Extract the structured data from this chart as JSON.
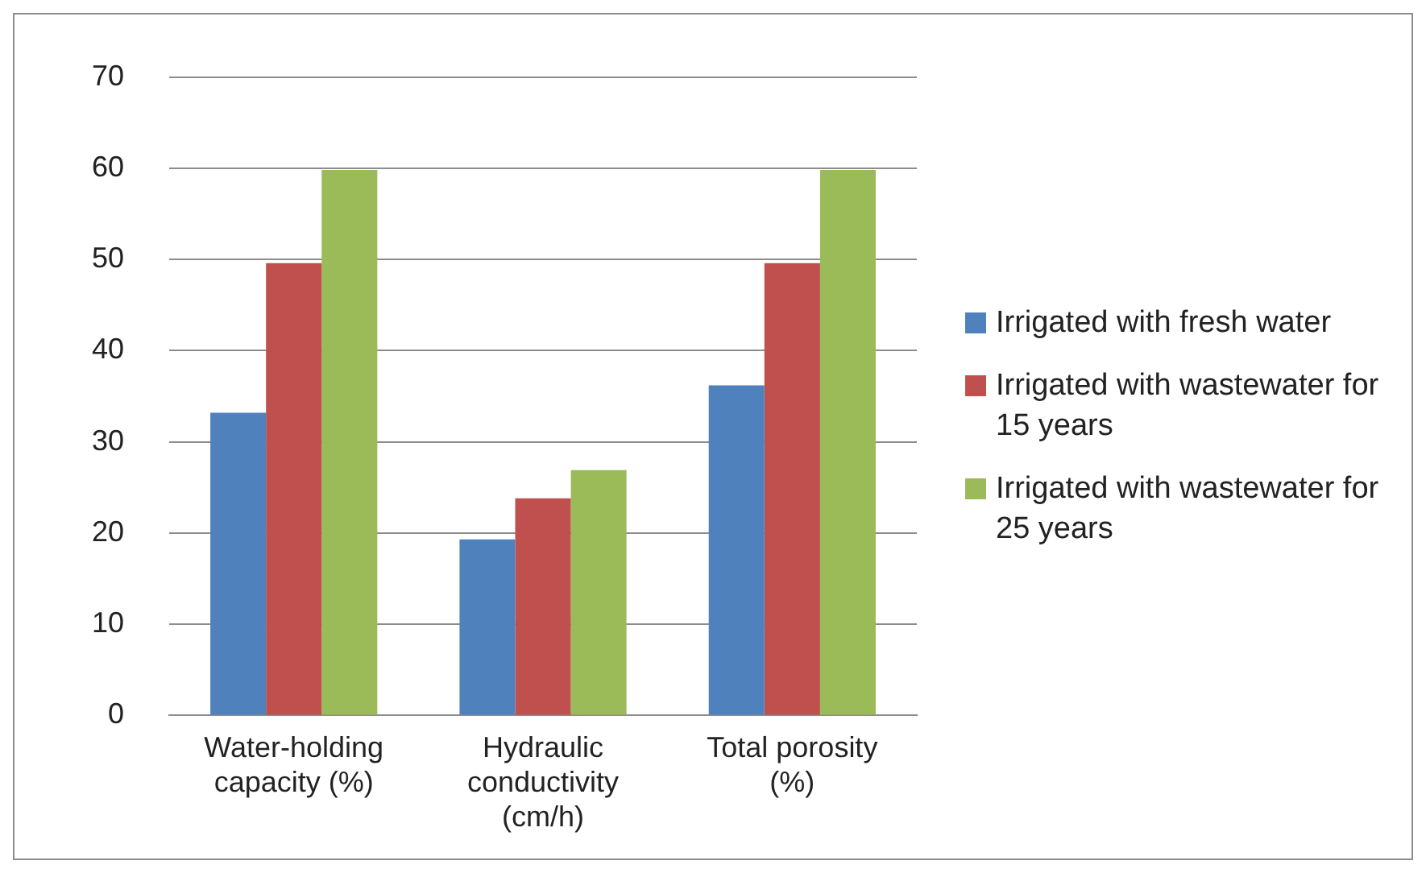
{
  "chart_data": {
    "type": "bar",
    "categories": [
      "Water-holding capacity (%)",
      "Hydraulic conductivity (cm/h)",
      "Total porosity (%)"
    ],
    "series": [
      {
        "name": "Irrigated with fresh water",
        "color": "#4f81bd",
        "values": [
          33.2,
          19.3,
          36.2
        ]
      },
      {
        "name": "Irrigated with wastewater for 15 years",
        "color": "#c0504d",
        "values": [
          49.6,
          23.8,
          49.6
        ]
      },
      {
        "name": "Irrigated with wastewater for 25 years",
        "color": "#9bbb59",
        "values": [
          59.8,
          26.9,
          59.8
        ]
      }
    ],
    "ylim": [
      0,
      70
    ],
    "yticks": [
      0,
      10,
      20,
      30,
      40,
      50,
      60,
      70
    ],
    "grid": "y",
    "legend": "right"
  }
}
